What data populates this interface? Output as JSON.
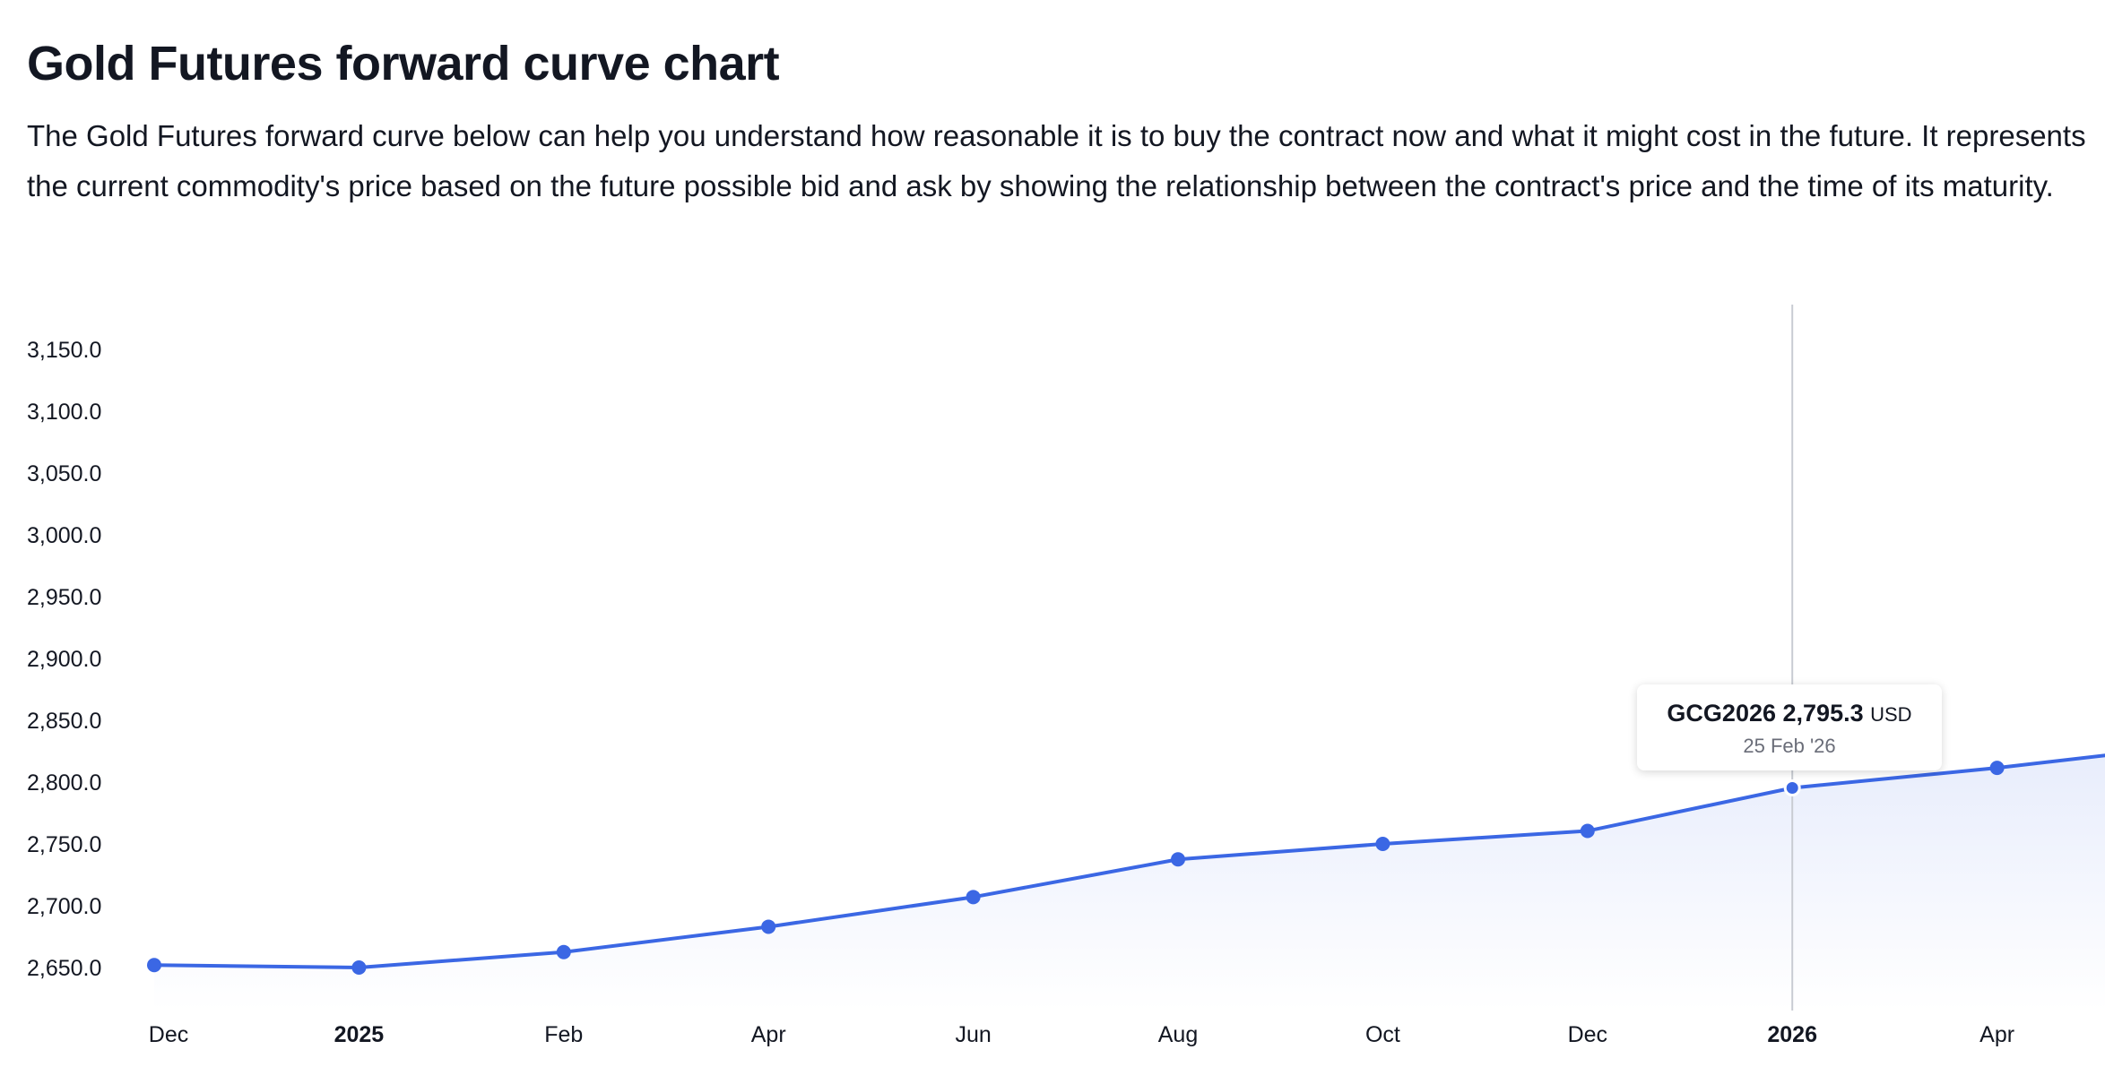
{
  "header": {
    "title": "Gold Futures forward curve chart",
    "description": "The Gold Futures forward curve below can help you understand how reasonable it is to buy the contract now and what it might cost in the future. It represents the current commodity's price based on the future possible bid and ask by showing the relationship between the contract's price and the time of its maturity."
  },
  "colors": {
    "line": "#3b67e4",
    "crosshair": "#c9ccd3",
    "area_top": "#e8edfc",
    "area_bottom": "#ffffff"
  },
  "tooltip": {
    "symbol": "GCG2026",
    "value": "2,795.3",
    "unit": "USD",
    "date": "25 Feb '26"
  },
  "chart_data": {
    "type": "area",
    "title": "",
    "xlabel": "",
    "ylabel": "",
    "ylim": [
      2620,
      3190
    ],
    "y_ticks": [
      2650,
      2700,
      2750,
      2800,
      2850,
      2900,
      2950,
      3000,
      3050,
      3100,
      3150
    ],
    "y_tick_labels": [
      "2,650.0",
      "2,700.0",
      "2,750.0",
      "2,800.0",
      "2,850.0",
      "2,900.0",
      "2,950.0",
      "3,000.0",
      "3,050.0",
      "3,100.0",
      "3,150.0"
    ],
    "x_ticks": [
      {
        "label": "Dec",
        "bold": false
      },
      {
        "label": "2025",
        "bold": true
      },
      {
        "label": "Feb",
        "bold": false
      },
      {
        "label": "Apr",
        "bold": false
      },
      {
        "label": "Jun",
        "bold": false
      },
      {
        "label": "Aug",
        "bold": false
      },
      {
        "label": "Oct",
        "bold": false
      },
      {
        "label": "Dec",
        "bold": false
      },
      {
        "label": "2026",
        "bold": true
      },
      {
        "label": "Apr",
        "bold": false
      }
    ],
    "series": [
      {
        "name": "Gold Futures forward curve",
        "points": [
          {
            "t": 0.0,
            "value": 2652.0
          },
          {
            "t": 1.0,
            "value": 2650.0
          },
          {
            "t": 2.0,
            "value": 2662.5
          },
          {
            "t": 3.0,
            "value": 2683.0
          },
          {
            "t": 4.0,
            "value": 2707.0
          },
          {
            "t": 5.0,
            "value": 2737.5
          },
          {
            "t": 6.0,
            "value": 2750.0
          },
          {
            "t": 7.0,
            "value": 2760.5
          },
          {
            "t": 8.0,
            "value": 2795.3
          },
          {
            "t": 9.0,
            "value": 2811.5
          },
          {
            "t": 9.55,
            "value": 2822.0
          }
        ]
      }
    ],
    "highlight_index": 8
  }
}
